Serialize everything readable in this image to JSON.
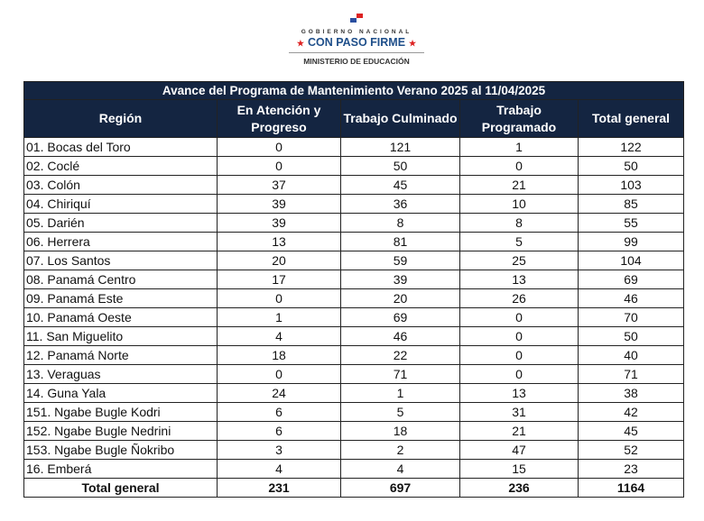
{
  "logo": {
    "line1": "GOBIERNO NACIONAL",
    "line2": "CON PASO FIRME",
    "line3": "MINISTERIO DE EDUCACIÓN"
  },
  "table": {
    "title": "Avance del Programa de Mantenimiento Verano 2025 al 11/04/2025",
    "headers": [
      "Región",
      "En Atención y Progreso",
      "Trabajo Culminado",
      "Trabajo Programado",
      "Total general"
    ],
    "rows": [
      [
        "01. Bocas del Toro",
        "0",
        "121",
        "1",
        "122"
      ],
      [
        "02. Coclé",
        "0",
        "50",
        "0",
        "50"
      ],
      [
        "03. Colón",
        "37",
        "45",
        "21",
        "103"
      ],
      [
        "04. Chiriquí",
        "39",
        "36",
        "10",
        "85"
      ],
      [
        "05. Darién",
        "39",
        "8",
        "8",
        "55"
      ],
      [
        "06. Herrera",
        "13",
        "81",
        "5",
        "99"
      ],
      [
        "07. Los Santos",
        "20",
        "59",
        "25",
        "104"
      ],
      [
        "08. Panamá Centro",
        "17",
        "39",
        "13",
        "69"
      ],
      [
        "09. Panamá Este",
        "0",
        "20",
        "26",
        "46"
      ],
      [
        "10. Panamá Oeste",
        "1",
        "69",
        "0",
        "70"
      ],
      [
        "11. San Miguelito",
        "4",
        "46",
        "0",
        "50"
      ],
      [
        "12. Panamá Norte",
        "18",
        "22",
        "0",
        "40"
      ],
      [
        "13. Veraguas",
        "0",
        "71",
        "0",
        "71"
      ],
      [
        "14. Guna Yala",
        "24",
        "1",
        "13",
        "38"
      ],
      [
        "151. Ngabe Bugle Kodri",
        "6",
        "5",
        "31",
        "42"
      ],
      [
        "152. Ngabe Bugle Nedrini",
        "6",
        "18",
        "21",
        "45"
      ],
      [
        "153. Ngabe Bugle Ñokribo",
        "3",
        "2",
        "47",
        "52"
      ],
      [
        "16. Emberá",
        "4",
        "4",
        "15",
        "23"
      ]
    ],
    "total": [
      "Total general",
      "231",
      "697",
      "236",
      "1164"
    ]
  },
  "colors": {
    "header_bg": "#142541",
    "header_text": "#ffffff",
    "brand_blue": "#1f4f8a",
    "brand_red": "#dd2222"
  }
}
